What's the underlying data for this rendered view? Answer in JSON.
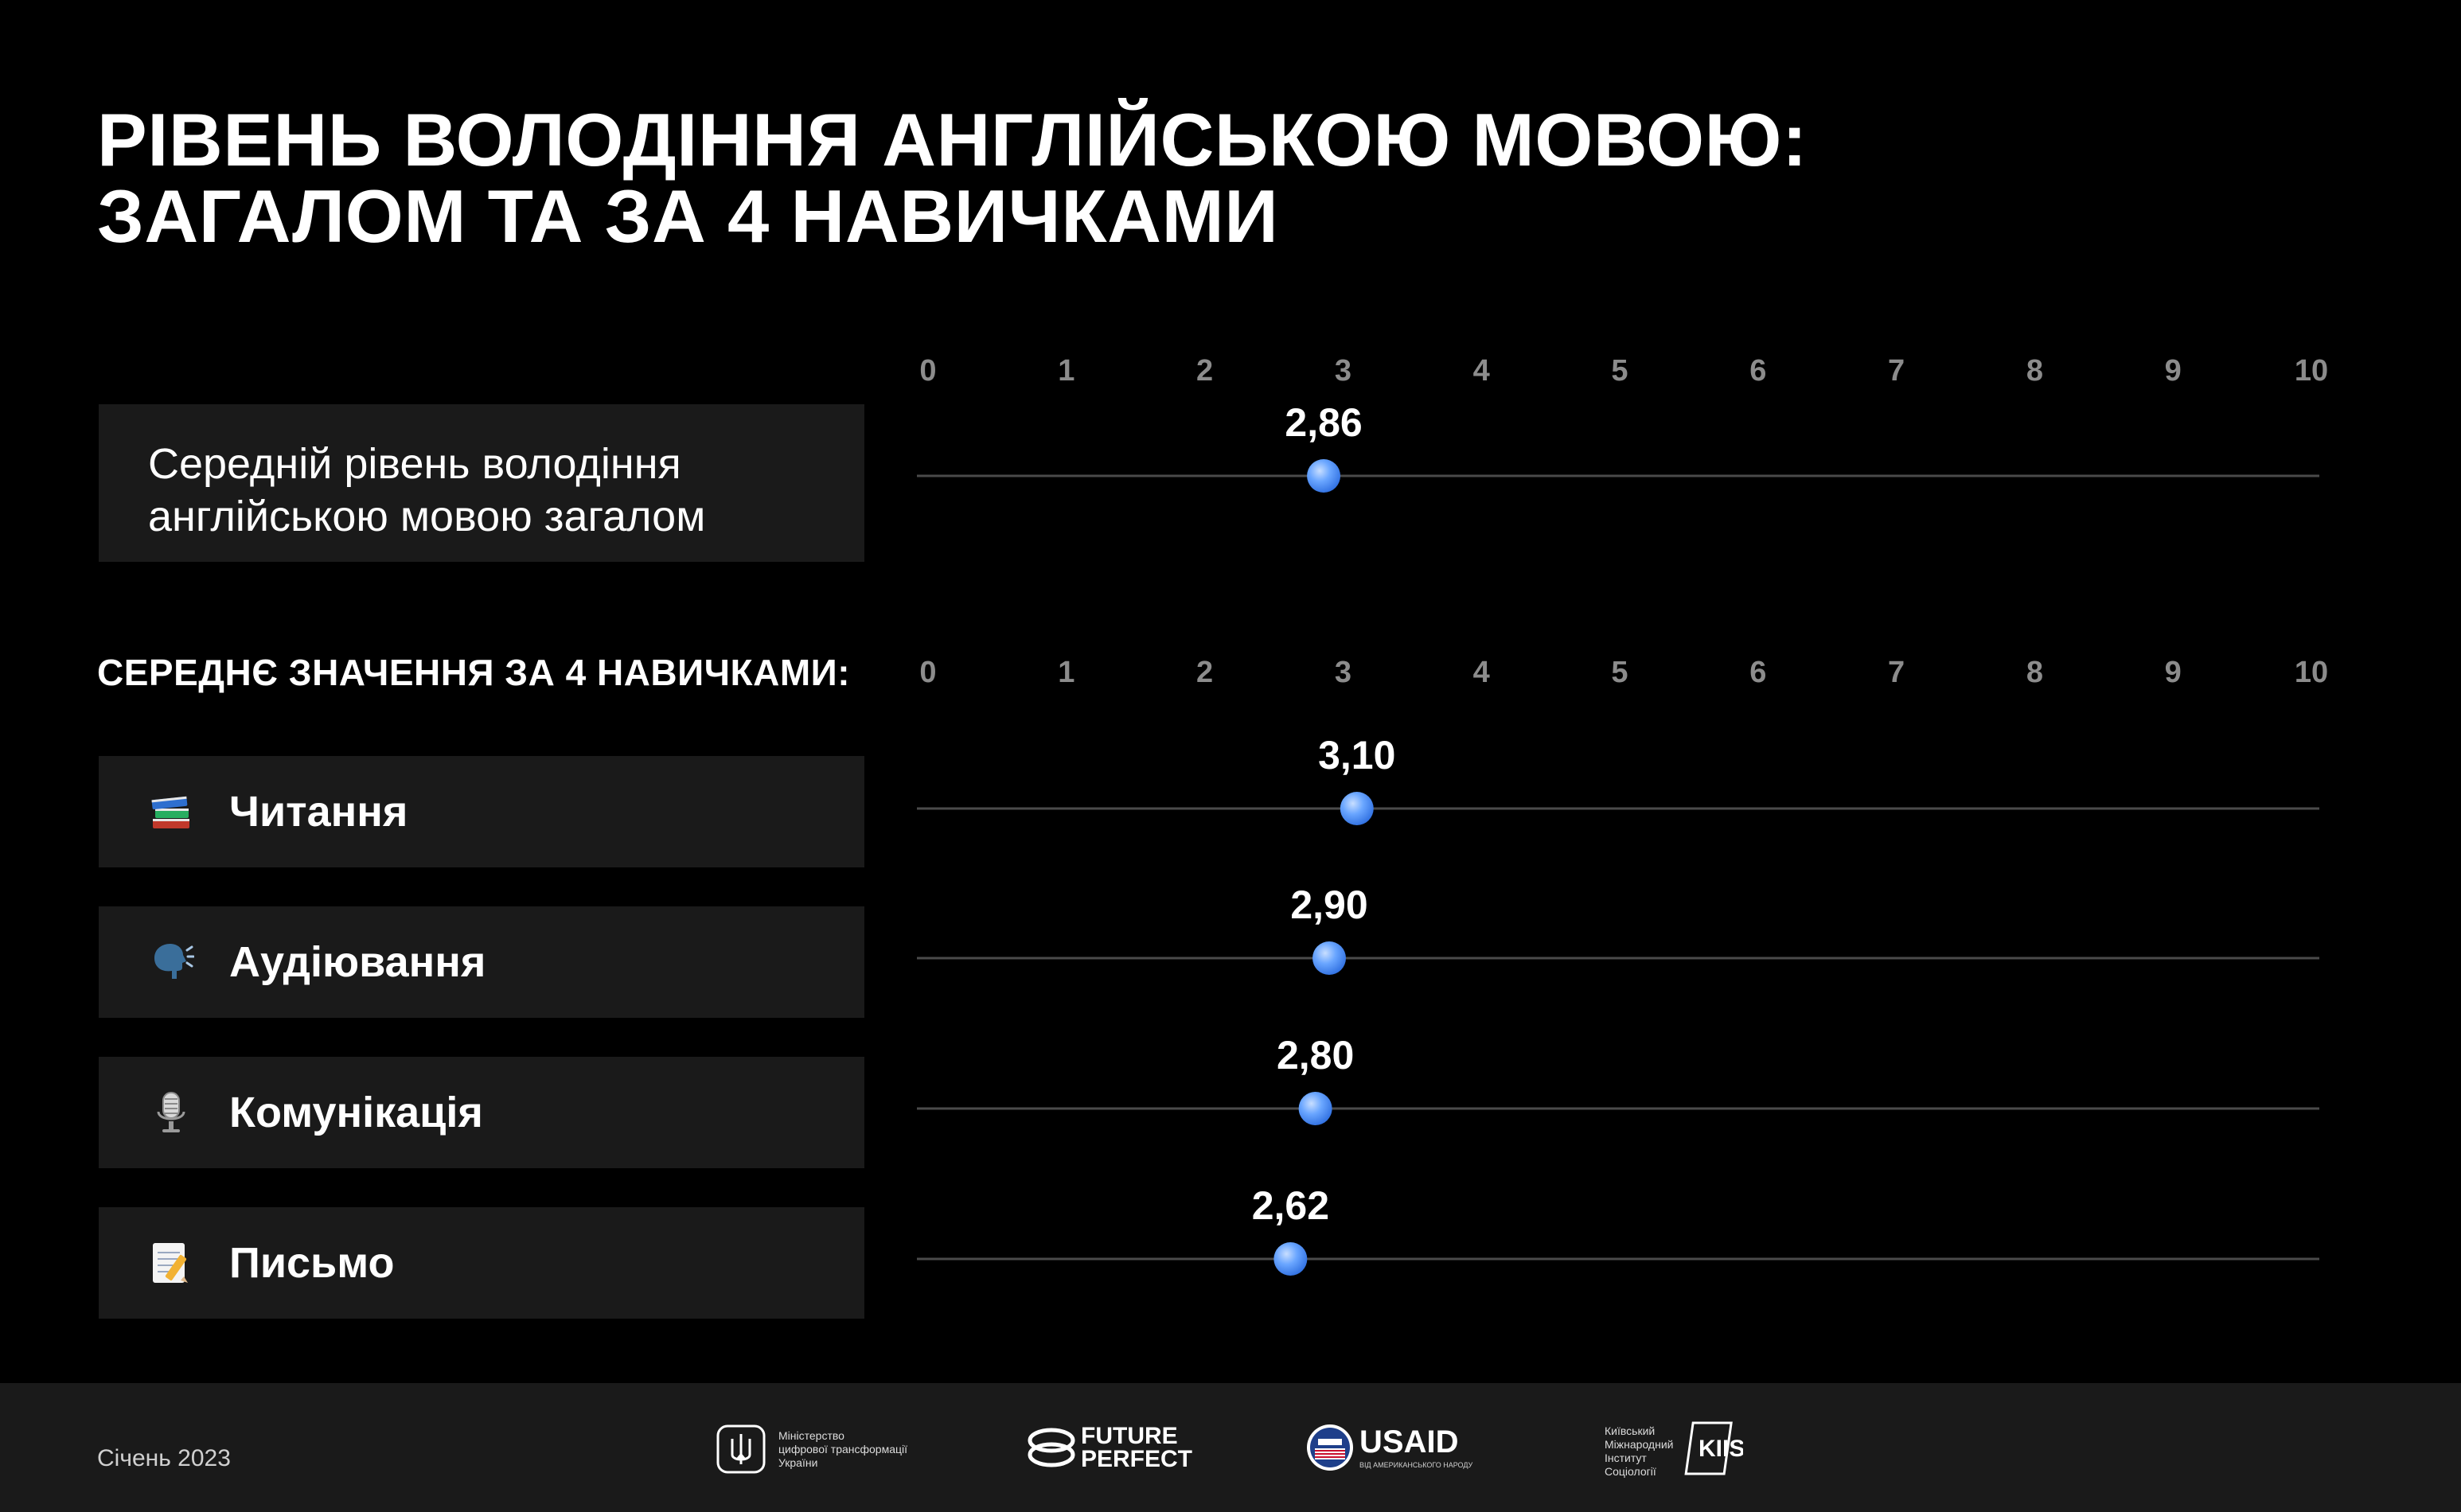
{
  "title": {
    "line1": "РІВЕНЬ ВОЛОДІННЯ АНГЛІЙСЬКОЮ МОВОЮ:",
    "line2": "ЗАГАЛОМ ТА ЗА 4 НАВИЧКАМИ"
  },
  "overall": {
    "label_line1": "Середній рівень володіння",
    "label_line2": "англійською мовою загалом"
  },
  "skills_heading": "СЕРЕДНЄ ЗНАЧЕННЯ ЗА 4 НАВИЧКАМИ:",
  "skills": [
    {
      "label": "Читання",
      "icon": "books-icon"
    },
    {
      "label": "Аудіювання",
      "icon": "speaking-head-icon"
    },
    {
      "label": "Комунікація",
      "icon": "microphone-icon"
    },
    {
      "label": "Письмо",
      "icon": "memo-icon"
    }
  ],
  "chart_data": {
    "type": "dot",
    "axis": {
      "min": 0,
      "max": 10,
      "ticks": [
        "0",
        "1",
        "2",
        "3",
        "4",
        "5",
        "6",
        "7",
        "8",
        "9",
        "10"
      ]
    },
    "overall": {
      "label": "Середній рівень володіння англійською мовою загалом",
      "value": 2.86,
      "value_label": "2,86"
    },
    "series": [
      {
        "name": "Читання",
        "value": 3.1,
        "value_label": "3,10"
      },
      {
        "name": "Аудіювання",
        "value": 2.9,
        "value_label": "2,90"
      },
      {
        "name": "Комунікація",
        "value": 2.8,
        "value_label": "2,80"
      },
      {
        "name": "Письмо",
        "value": 2.62,
        "value_label": "2,62"
      }
    ],
    "colors": {
      "dot": "#5a9cf8",
      "line": "#4a4a4a",
      "tick": "#8c8c8c"
    }
  },
  "footer": {
    "date": "Січень 2023",
    "ministry_line1": "Міністерство",
    "ministry_line2": "цифрової трансформації",
    "ministry_line3": "України",
    "future_perfect_line1": "FUTURE",
    "future_perfect_line2": "PERFECT",
    "usaid": "USAID",
    "usaid_sub": "ВІД АМЕРИКАНСЬКОГО НАРОДУ",
    "kiis_line1": "Київський",
    "kiis_line2": "Міжнародний",
    "kiis_line3": "Інститут",
    "kiis_line4": "Соціології",
    "kiis_mark": "KIIS"
  }
}
